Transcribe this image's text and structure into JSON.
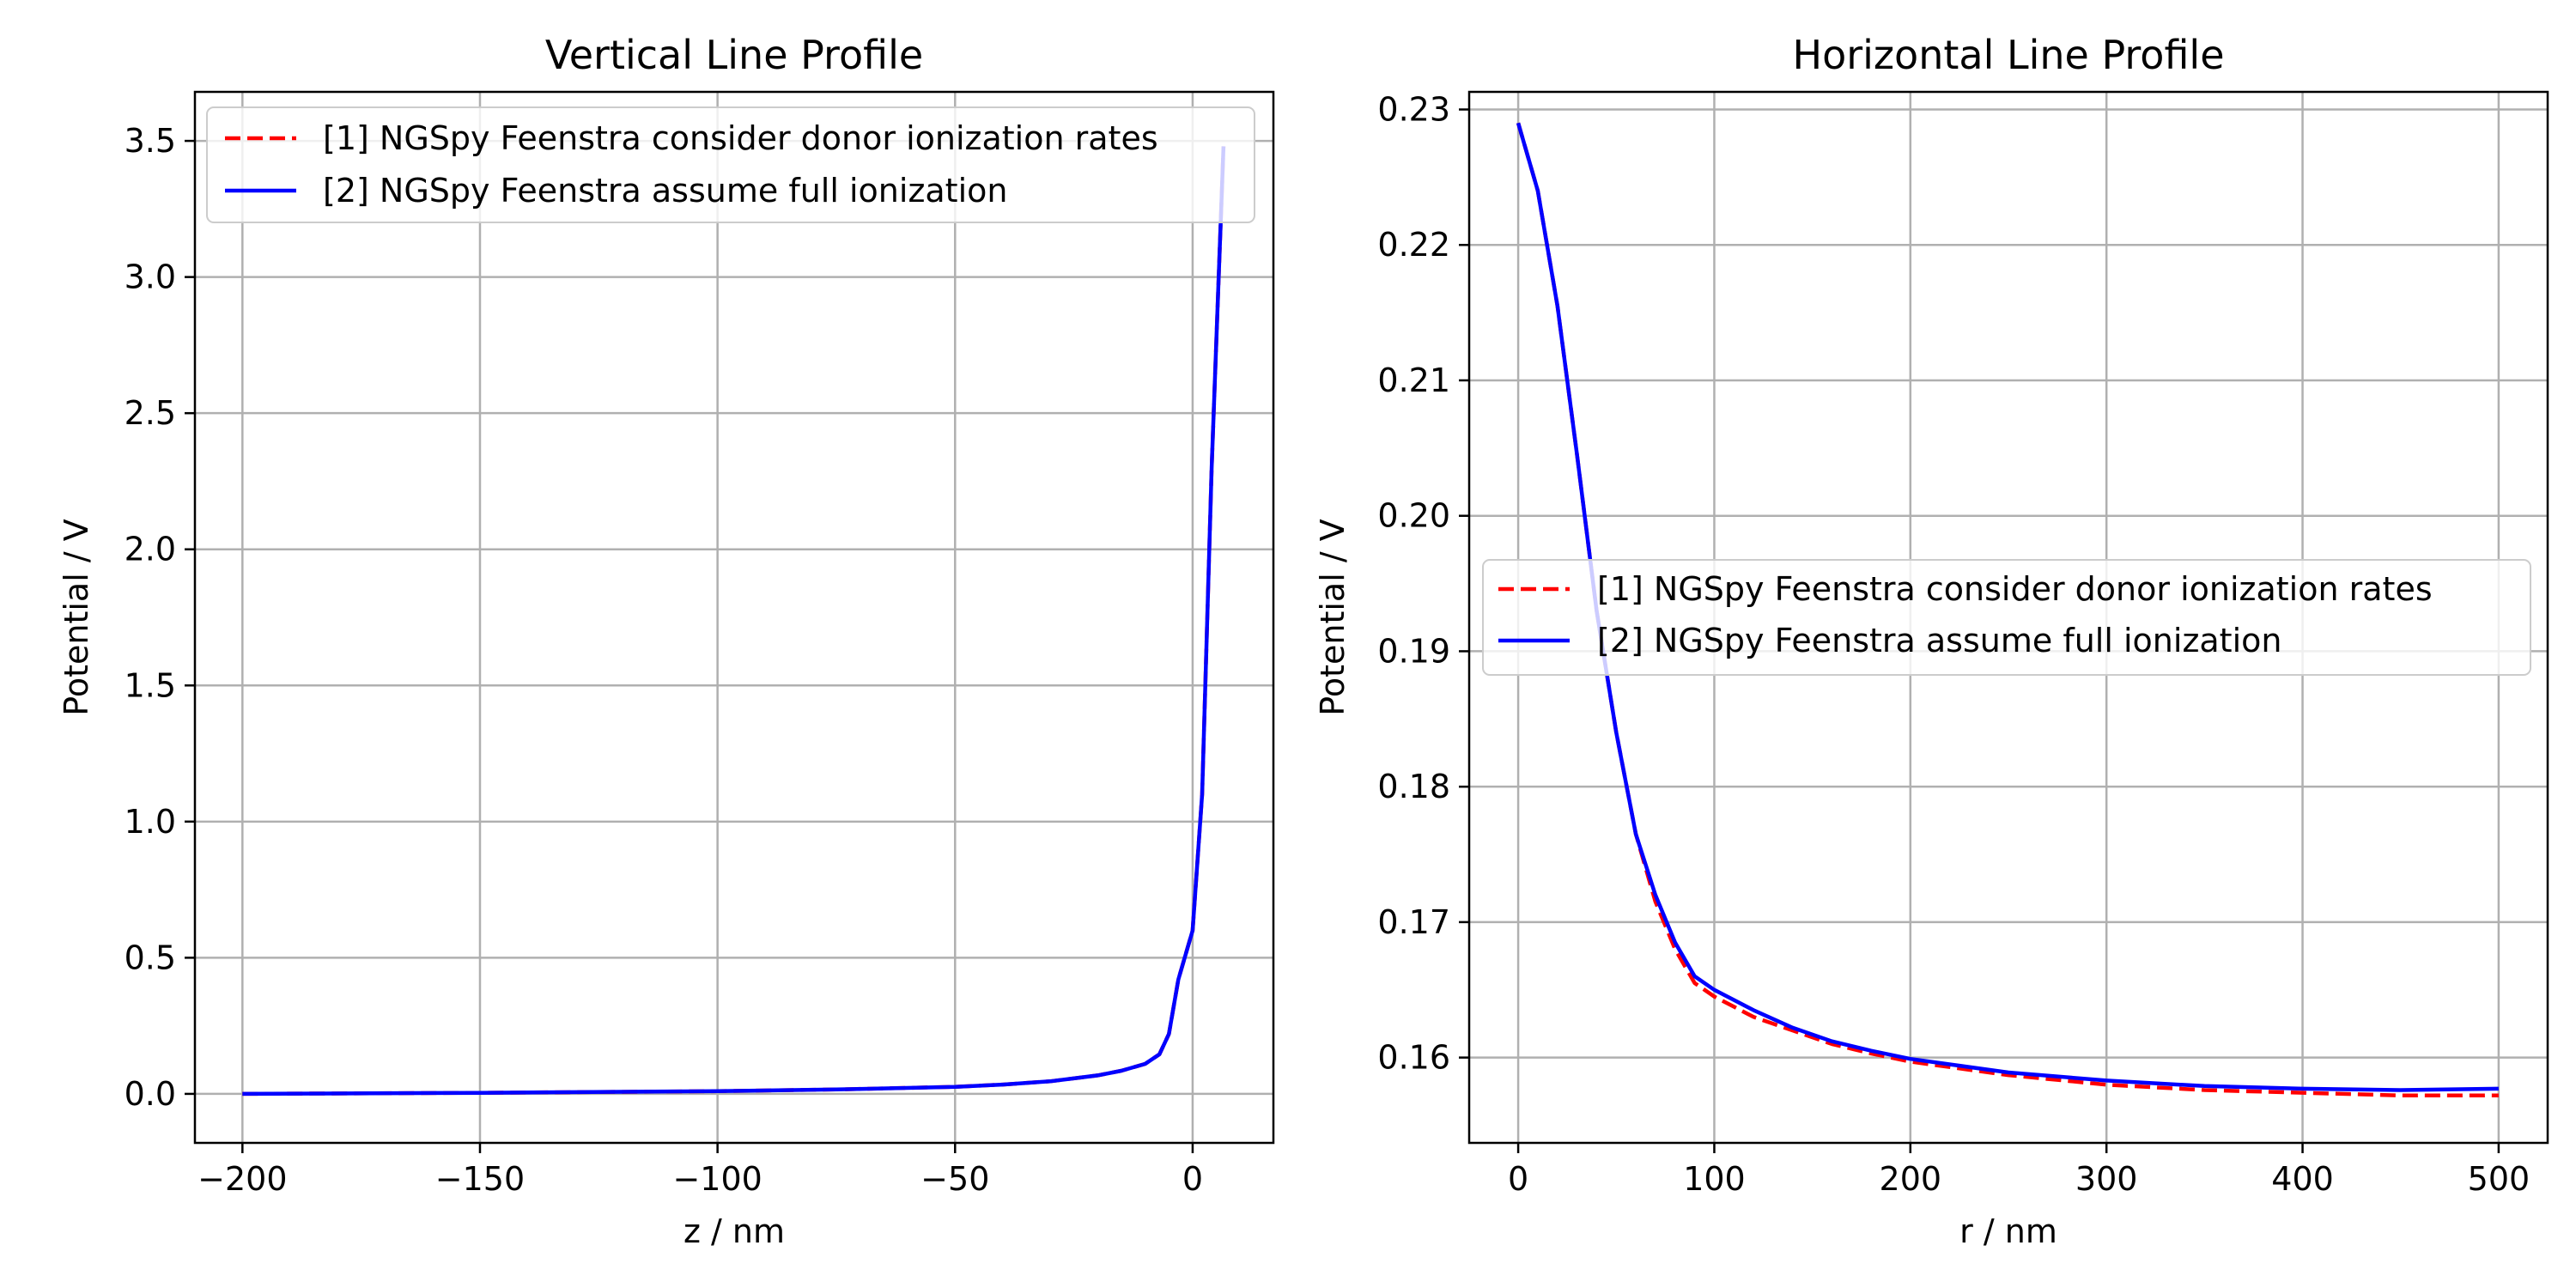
{
  "colors": {
    "series_1": "#ff0000",
    "series_2": "#0000ff",
    "grid": "#b0b0b0",
    "axes": "#000000",
    "legend_border": "#cccccc"
  },
  "chart_data": [
    {
      "type": "line",
      "title": "Vertical Line Profile",
      "xlabel": "z / nm",
      "ylabel": "Potential / V",
      "xlim": [
        -210,
        17
      ],
      "ylim": [
        -0.18,
        3.68
      ],
      "xticks": [
        -200,
        -150,
        -100,
        -50,
        0
      ],
      "xtick_labels": [
        "−200",
        "−150",
        "−100",
        "−50",
        "0"
      ],
      "yticks": [
        0.0,
        0.5,
        1.0,
        1.5,
        2.0,
        2.5,
        3.0,
        3.5
      ],
      "ytick_labels": [
        "0.0",
        "0.5",
        "1.0",
        "1.5",
        "2.0",
        "2.5",
        "3.0",
        "3.5"
      ],
      "grid": true,
      "legend_position": "upper-left",
      "series": [
        {
          "name": "[1] NGSpy Feenstra consider donor ionization rates",
          "style": "dashed",
          "color": "#ff0000",
          "x": [
            -200,
            -150,
            -100,
            -75,
            -50,
            -40,
            -30,
            -20,
            -15,
            -10,
            -7,
            -5,
            -3,
            0,
            2,
            4,
            6.5
          ],
          "y": [
            0.0,
            0.004,
            0.01,
            0.016,
            0.026,
            0.034,
            0.046,
            0.068,
            0.085,
            0.11,
            0.145,
            0.22,
            0.42,
            0.6,
            1.1,
            2.3,
            3.48
          ]
        },
        {
          "name": "[2] NGSpy Feenstra assume full ionization",
          "style": "solid",
          "color": "#0000ff",
          "x": [
            -200,
            -150,
            -100,
            -75,
            -50,
            -40,
            -30,
            -20,
            -15,
            -10,
            -7,
            -5,
            -3,
            0,
            2,
            4,
            6.5
          ],
          "y": [
            0.0,
            0.004,
            0.01,
            0.016,
            0.026,
            0.034,
            0.046,
            0.068,
            0.085,
            0.11,
            0.145,
            0.22,
            0.42,
            0.6,
            1.1,
            2.3,
            3.48
          ]
        }
      ]
    },
    {
      "type": "line",
      "title": "Horizontal Line Profile",
      "xlabel": "r / nm",
      "ylabel": "Potential / V",
      "xlim": [
        -25,
        525
      ],
      "ylim": [
        0.1537,
        0.2313
      ],
      "xticks": [
        0,
        100,
        200,
        300,
        400,
        500
      ],
      "xtick_labels": [
        "0",
        "100",
        "200",
        "300",
        "400",
        "500"
      ],
      "yticks": [
        0.16,
        0.17,
        0.18,
        0.19,
        0.2,
        0.21,
        0.22,
        0.23
      ],
      "ytick_labels": [
        "0.16",
        "0.17",
        "0.18",
        "0.19",
        "0.20",
        "0.21",
        "0.22",
        "0.23"
      ],
      "grid": true,
      "legend_position": "center-right",
      "series": [
        {
          "name": "[1] NGSpy Feenstra consider donor ionization rates",
          "style": "dashed",
          "color": "#ff0000",
          "x": [
            0,
            10,
            20,
            30,
            40,
            50,
            60,
            70,
            80,
            90,
            100,
            120,
            140,
            160,
            180,
            200,
            250,
            300,
            350,
            400,
            450,
            500
          ],
          "y": [
            0.229,
            0.224,
            0.2155,
            0.2045,
            0.193,
            0.184,
            0.1765,
            0.1715,
            0.168,
            0.1655,
            0.1645,
            0.163,
            0.162,
            0.161,
            0.1603,
            0.1597,
            0.1587,
            0.158,
            0.1576,
            0.1574,
            0.1572,
            0.1572
          ]
        },
        {
          "name": "[2] NGSpy Feenstra assume full ionization",
          "style": "solid",
          "color": "#0000ff",
          "x": [
            0,
            10,
            20,
            30,
            40,
            50,
            60,
            70,
            80,
            90,
            100,
            120,
            140,
            160,
            180,
            200,
            250,
            300,
            350,
            400,
            450,
            500
          ],
          "y": [
            0.229,
            0.224,
            0.2155,
            0.2045,
            0.193,
            0.184,
            0.1765,
            0.172,
            0.1685,
            0.166,
            0.165,
            0.1635,
            0.1622,
            0.1612,
            0.1605,
            0.1599,
            0.1589,
            0.1583,
            0.1579,
            0.1577,
            0.1576,
            0.1577
          ]
        }
      ]
    }
  ]
}
